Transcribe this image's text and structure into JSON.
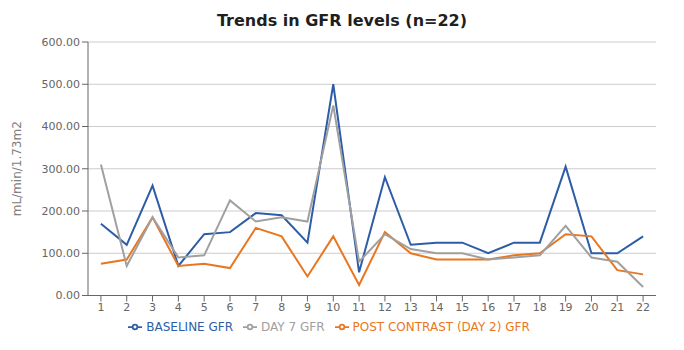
{
  "chart_data": {
    "type": "line",
    "title": "Trends in GFR levels (n=22)",
    "ylabel": "mL/min/1.73m2",
    "x": [
      1,
      2,
      3,
      4,
      5,
      6,
      7,
      8,
      9,
      10,
      11,
      12,
      13,
      14,
      15,
      16,
      17,
      18,
      19,
      20,
      21,
      22
    ],
    "series": [
      {
        "name": "BASELINE GFR",
        "color": "#2E5DA8",
        "values": [
          170,
          120,
          260,
          70,
          145,
          150,
          195,
          190,
          125,
          500,
          55,
          280,
          120,
          125,
          125,
          100,
          125,
          125,
          305,
          100,
          100,
          140
        ]
      },
      {
        "name": "POST CONTRAST (DAY 2) GFR",
        "color": "#E87722",
        "values": [
          75,
          85,
          185,
          70,
          75,
          65,
          160,
          140,
          45,
          140,
          25,
          150,
          100,
          85,
          85,
          85,
          95,
          100,
          145,
          140,
          60,
          50
        ]
      },
      {
        "name": "DAY 7 GFR",
        "color": "#A0A0A0",
        "values": [
          310,
          70,
          185,
          90,
          95,
          225,
          175,
          185,
          175,
          450,
          80,
          145,
          110,
          100,
          100,
          85,
          90,
          95,
          165,
          90,
          80,
          20
        ]
      }
    ],
    "xlim": [
      0.5,
      22.5
    ],
    "xticks": [
      1,
      2,
      3,
      4,
      5,
      6,
      7,
      8,
      9,
      10,
      11,
      12,
      13,
      14,
      15,
      16,
      17,
      18,
      19,
      20,
      21,
      22
    ],
    "ylim": [
      0,
      600
    ],
    "yticks": [
      {
        "value": 0,
        "label": "0.00"
      },
      {
        "value": 100,
        "label": "100.00"
      },
      {
        "value": 200,
        "label": "200.00"
      },
      {
        "value": 300,
        "label": "300.00"
      },
      {
        "value": 400,
        "label": "400.00"
      },
      {
        "value": 500,
        "label": "500.00"
      },
      {
        "value": 600,
        "label": "600.00"
      }
    ],
    "grid": true,
    "legend": "bottom"
  }
}
